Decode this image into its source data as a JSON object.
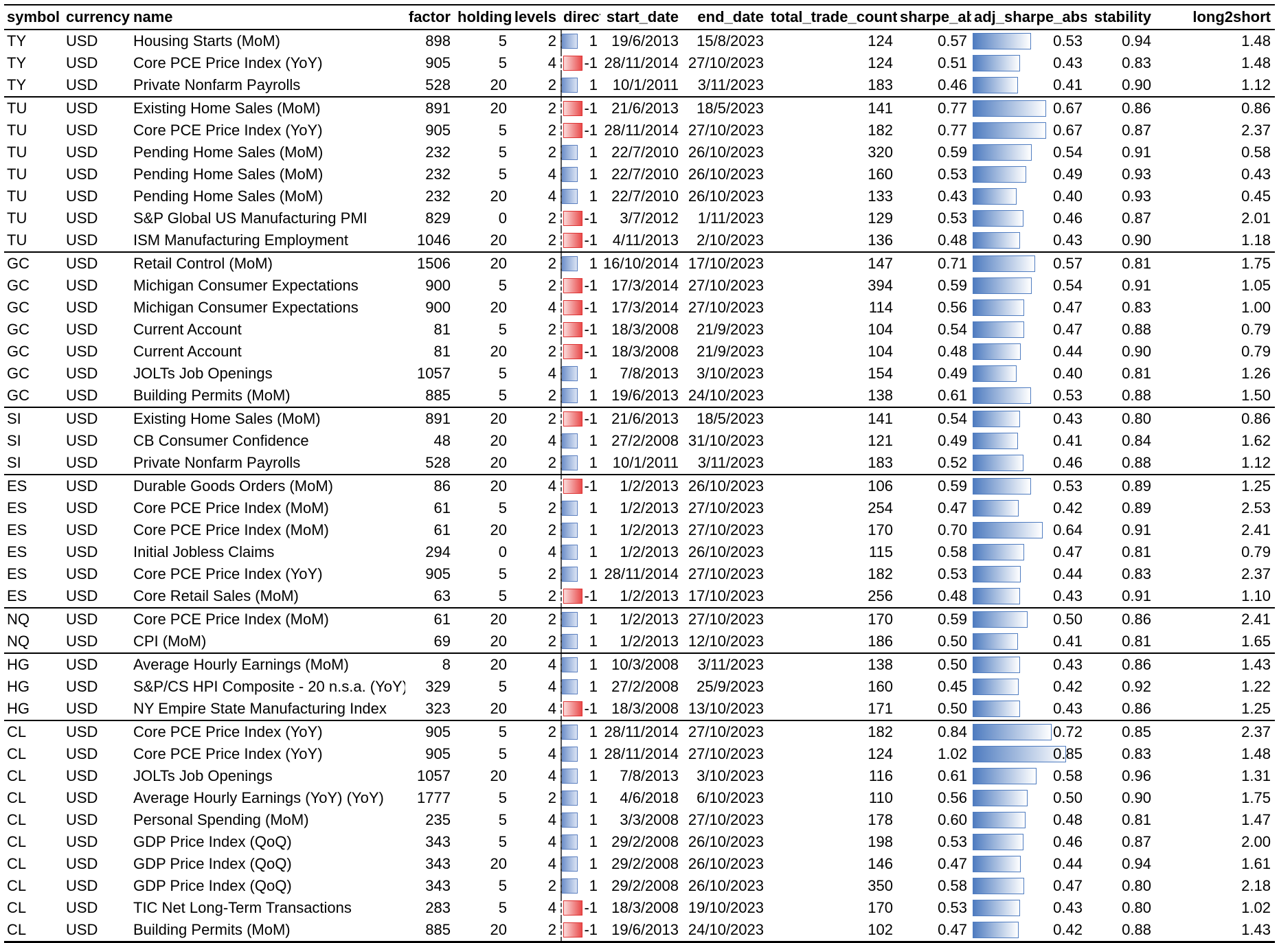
{
  "headers": [
    "symbol",
    "currency",
    "name",
    "factor",
    "holding",
    "levels",
    "direct",
    "start_date",
    "end_date",
    "total_trade_count",
    "sharpe_abs",
    "adj_sharpe_abs",
    "stability",
    "long2short"
  ],
  "rows": [
    {
      "symbol": "TY",
      "currency": "USD",
      "name": "Housing Starts (MoM)",
      "factor": "898",
      "holding": "5",
      "levels": "2",
      "direct": "1",
      "start_date": "19/6/2013",
      "end_date": "15/8/2023",
      "total_trade_count": "124",
      "sharpe_abs": "0.57",
      "adj_sharpe_abs": "0.53",
      "stability": "0.94",
      "long2short": "1.48"
    },
    {
      "symbol": "TY",
      "currency": "USD",
      "name": "Core PCE Price Index (YoY)",
      "factor": "905",
      "holding": "5",
      "levels": "4",
      "direct": "-1",
      "start_date": "28/11/2014",
      "end_date": "27/10/2023",
      "total_trade_count": "124",
      "sharpe_abs": "0.51",
      "adj_sharpe_abs": "0.43",
      "stability": "0.83",
      "long2short": "1.48"
    },
    {
      "symbol": "TY",
      "currency": "USD",
      "name": "Private Nonfarm Payrolls",
      "factor": "528",
      "holding": "20",
      "levels": "2",
      "direct": "1",
      "start_date": "10/1/2011",
      "end_date": "3/11/2023",
      "total_trade_count": "183",
      "sharpe_abs": "0.46",
      "adj_sharpe_abs": "0.41",
      "stability": "0.90",
      "long2short": "1.12"
    },
    {
      "symbol": "TU",
      "currency": "USD",
      "name": "Existing Home Sales (MoM)",
      "factor": "891",
      "holding": "20",
      "levels": "2",
      "direct": "-1",
      "start_date": "21/6/2013",
      "end_date": "18/5/2023",
      "total_trade_count": "141",
      "sharpe_abs": "0.77",
      "adj_sharpe_abs": "0.67",
      "stability": "0.86",
      "long2short": "0.86"
    },
    {
      "symbol": "TU",
      "currency": "USD",
      "name": "Core PCE Price Index (YoY)",
      "factor": "905",
      "holding": "5",
      "levels": "2",
      "direct": "-1",
      "start_date": "28/11/2014",
      "end_date": "27/10/2023",
      "total_trade_count": "182",
      "sharpe_abs": "0.77",
      "adj_sharpe_abs": "0.67",
      "stability": "0.87",
      "long2short": "2.37"
    },
    {
      "symbol": "TU",
      "currency": "USD",
      "name": "Pending Home Sales (MoM)",
      "factor": "232",
      "holding": "5",
      "levels": "2",
      "direct": "1",
      "start_date": "22/7/2010",
      "end_date": "26/10/2023",
      "total_trade_count": "320",
      "sharpe_abs": "0.59",
      "adj_sharpe_abs": "0.54",
      "stability": "0.91",
      "long2short": "0.58"
    },
    {
      "symbol": "TU",
      "currency": "USD",
      "name": "Pending Home Sales (MoM)",
      "factor": "232",
      "holding": "5",
      "levels": "4",
      "direct": "1",
      "start_date": "22/7/2010",
      "end_date": "26/10/2023",
      "total_trade_count": "160",
      "sharpe_abs": "0.53",
      "adj_sharpe_abs": "0.49",
      "stability": "0.93",
      "long2short": "0.43"
    },
    {
      "symbol": "TU",
      "currency": "USD",
      "name": "Pending Home Sales (MoM)",
      "factor": "232",
      "holding": "20",
      "levels": "4",
      "direct": "1",
      "start_date": "22/7/2010",
      "end_date": "26/10/2023",
      "total_trade_count": "133",
      "sharpe_abs": "0.43",
      "adj_sharpe_abs": "0.40",
      "stability": "0.93",
      "long2short": "0.45"
    },
    {
      "symbol": "TU",
      "currency": "USD",
      "name": "S&P Global US Manufacturing PMI",
      "factor": "829",
      "holding": "0",
      "levels": "2",
      "direct": "-1",
      "start_date": "3/7/2012",
      "end_date": "1/11/2023",
      "total_trade_count": "129",
      "sharpe_abs": "0.53",
      "adj_sharpe_abs": "0.46",
      "stability": "0.87",
      "long2short": "2.01"
    },
    {
      "symbol": "TU",
      "currency": "USD",
      "name": "ISM Manufacturing Employment",
      "factor": "1046",
      "holding": "20",
      "levels": "2",
      "direct": "-1",
      "start_date": "4/11/2013",
      "end_date": "2/10/2023",
      "total_trade_count": "136",
      "sharpe_abs": "0.48",
      "adj_sharpe_abs": "0.43",
      "stability": "0.90",
      "long2short": "1.18"
    },
    {
      "symbol": "GC",
      "currency": "USD",
      "name": "Retail Control (MoM)",
      "factor": "1506",
      "holding": "20",
      "levels": "2",
      "direct": "1",
      "start_date": "16/10/2014",
      "end_date": "17/10/2023",
      "total_trade_count": "147",
      "sharpe_abs": "0.71",
      "adj_sharpe_abs": "0.57",
      "stability": "0.81",
      "long2short": "1.75"
    },
    {
      "symbol": "GC",
      "currency": "USD",
      "name": "Michigan Consumer Expectations",
      "factor": "900",
      "holding": "5",
      "levels": "2",
      "direct": "-1",
      "start_date": "17/3/2014",
      "end_date": "27/10/2023",
      "total_trade_count": "394",
      "sharpe_abs": "0.59",
      "adj_sharpe_abs": "0.54",
      "stability": "0.91",
      "long2short": "1.05"
    },
    {
      "symbol": "GC",
      "currency": "USD",
      "name": "Michigan Consumer Expectations",
      "factor": "900",
      "holding": "20",
      "levels": "4",
      "direct": "-1",
      "start_date": "17/3/2014",
      "end_date": "27/10/2023",
      "total_trade_count": "114",
      "sharpe_abs": "0.56",
      "adj_sharpe_abs": "0.47",
      "stability": "0.83",
      "long2short": "1.00"
    },
    {
      "symbol": "GC",
      "currency": "USD",
      "name": "Current Account",
      "factor": "81",
      "holding": "5",
      "levels": "2",
      "direct": "-1",
      "start_date": "18/3/2008",
      "end_date": "21/9/2023",
      "total_trade_count": "104",
      "sharpe_abs": "0.54",
      "adj_sharpe_abs": "0.47",
      "stability": "0.88",
      "long2short": "0.79"
    },
    {
      "symbol": "GC",
      "currency": "USD",
      "name": "Current Account",
      "factor": "81",
      "holding": "20",
      "levels": "2",
      "direct": "-1",
      "start_date": "18/3/2008",
      "end_date": "21/9/2023",
      "total_trade_count": "104",
      "sharpe_abs": "0.48",
      "adj_sharpe_abs": "0.44",
      "stability": "0.90",
      "long2short": "0.79"
    },
    {
      "symbol": "GC",
      "currency": "USD",
      "name": "JOLTs Job Openings",
      "factor": "1057",
      "holding": "5",
      "levels": "4",
      "direct": "1",
      "start_date": "7/8/2013",
      "end_date": "3/10/2023",
      "total_trade_count": "154",
      "sharpe_abs": "0.49",
      "adj_sharpe_abs": "0.40",
      "stability": "0.81",
      "long2short": "1.26"
    },
    {
      "symbol": "GC",
      "currency": "USD",
      "name": "Building Permits (MoM)",
      "factor": "885",
      "holding": "5",
      "levels": "2",
      "direct": "1",
      "start_date": "19/6/2013",
      "end_date": "24/10/2023",
      "total_trade_count": "138",
      "sharpe_abs": "0.61",
      "adj_sharpe_abs": "0.53",
      "stability": "0.88",
      "long2short": "1.50"
    },
    {
      "symbol": "SI",
      "currency": "USD",
      "name": "Existing Home Sales (MoM)",
      "factor": "891",
      "holding": "20",
      "levels": "2",
      "direct": "-1",
      "start_date": "21/6/2013",
      "end_date": "18/5/2023",
      "total_trade_count": "141",
      "sharpe_abs": "0.54",
      "adj_sharpe_abs": "0.43",
      "stability": "0.80",
      "long2short": "0.86"
    },
    {
      "symbol": "SI",
      "currency": "USD",
      "name": "CB Consumer Confidence",
      "factor": "48",
      "holding": "20",
      "levels": "4",
      "direct": "1",
      "start_date": "27/2/2008",
      "end_date": "31/10/2023",
      "total_trade_count": "121",
      "sharpe_abs": "0.49",
      "adj_sharpe_abs": "0.41",
      "stability": "0.84",
      "long2short": "1.62"
    },
    {
      "symbol": "SI",
      "currency": "USD",
      "name": "Private Nonfarm Payrolls",
      "factor": "528",
      "holding": "20",
      "levels": "2",
      "direct": "1",
      "start_date": "10/1/2011",
      "end_date": "3/11/2023",
      "total_trade_count": "183",
      "sharpe_abs": "0.52",
      "adj_sharpe_abs": "0.46",
      "stability": "0.88",
      "long2short": "1.12"
    },
    {
      "symbol": "ES",
      "currency": "USD",
      "name": "Durable Goods Orders (MoM)",
      "factor": "86",
      "holding": "20",
      "levels": "4",
      "direct": "-1",
      "start_date": "1/2/2013",
      "end_date": "26/10/2023",
      "total_trade_count": "106",
      "sharpe_abs": "0.59",
      "adj_sharpe_abs": "0.53",
      "stability": "0.89",
      "long2short": "1.25"
    },
    {
      "symbol": "ES",
      "currency": "USD",
      "name": "Core PCE Price Index (MoM)",
      "factor": "61",
      "holding": "5",
      "levels": "2",
      "direct": "1",
      "start_date": "1/2/2013",
      "end_date": "27/10/2023",
      "total_trade_count": "254",
      "sharpe_abs": "0.47",
      "adj_sharpe_abs": "0.42",
      "stability": "0.89",
      "long2short": "2.53"
    },
    {
      "symbol": "ES",
      "currency": "USD",
      "name": "Core PCE Price Index (MoM)",
      "factor": "61",
      "holding": "20",
      "levels": "2",
      "direct": "1",
      "start_date": "1/2/2013",
      "end_date": "27/10/2023",
      "total_trade_count": "170",
      "sharpe_abs": "0.70",
      "adj_sharpe_abs": "0.64",
      "stability": "0.91",
      "long2short": "2.41"
    },
    {
      "symbol": "ES",
      "currency": "USD",
      "name": "Initial Jobless Claims",
      "factor": "294",
      "holding": "0",
      "levels": "4",
      "direct": "1",
      "start_date": "1/2/2013",
      "end_date": "26/10/2023",
      "total_trade_count": "115",
      "sharpe_abs": "0.58",
      "adj_sharpe_abs": "0.47",
      "stability": "0.81",
      "long2short": "0.79"
    },
    {
      "symbol": "ES",
      "currency": "USD",
      "name": "Core PCE Price Index (YoY)",
      "factor": "905",
      "holding": "5",
      "levels": "2",
      "direct": "1",
      "start_date": "28/11/2014",
      "end_date": "27/10/2023",
      "total_trade_count": "182",
      "sharpe_abs": "0.53",
      "adj_sharpe_abs": "0.44",
      "stability": "0.83",
      "long2short": "2.37"
    },
    {
      "symbol": "ES",
      "currency": "USD",
      "name": "Core Retail Sales (MoM)",
      "factor": "63",
      "holding": "5",
      "levels": "2",
      "direct": "-1",
      "start_date": "1/2/2013",
      "end_date": "17/10/2023",
      "total_trade_count": "256",
      "sharpe_abs": "0.48",
      "adj_sharpe_abs": "0.43",
      "stability": "0.91",
      "long2short": "1.10"
    },
    {
      "symbol": "NQ",
      "currency": "USD",
      "name": "Core PCE Price Index (MoM)",
      "factor": "61",
      "holding": "20",
      "levels": "2",
      "direct": "1",
      "start_date": "1/2/2013",
      "end_date": "27/10/2023",
      "total_trade_count": "170",
      "sharpe_abs": "0.59",
      "adj_sharpe_abs": "0.50",
      "stability": "0.86",
      "long2short": "2.41"
    },
    {
      "symbol": "NQ",
      "currency": "USD",
      "name": "CPI (MoM)",
      "factor": "69",
      "holding": "20",
      "levels": "2",
      "direct": "1",
      "start_date": "1/2/2013",
      "end_date": "12/10/2023",
      "total_trade_count": "186",
      "sharpe_abs": "0.50",
      "adj_sharpe_abs": "0.41",
      "stability": "0.81",
      "long2short": "1.65"
    },
    {
      "symbol": "HG",
      "currency": "USD",
      "name": "Average Hourly Earnings (MoM)",
      "factor": "8",
      "holding": "20",
      "levels": "4",
      "direct": "1",
      "start_date": "10/3/2008",
      "end_date": "3/11/2023",
      "total_trade_count": "138",
      "sharpe_abs": "0.50",
      "adj_sharpe_abs": "0.43",
      "stability": "0.86",
      "long2short": "1.43"
    },
    {
      "symbol": "HG",
      "currency": "USD",
      "name": "S&P/CS HPI Composite - 20 n.s.a. (YoY)",
      "factor": "329",
      "holding": "5",
      "levels": "4",
      "direct": "1",
      "start_date": "27/2/2008",
      "end_date": "25/9/2023",
      "total_trade_count": "160",
      "sharpe_abs": "0.45",
      "adj_sharpe_abs": "0.42",
      "stability": "0.92",
      "long2short": "1.22"
    },
    {
      "symbol": "HG",
      "currency": "USD",
      "name": "NY Empire State Manufacturing Index",
      "factor": "323",
      "holding": "20",
      "levels": "4",
      "direct": "-1",
      "start_date": "18/3/2008",
      "end_date": "13/10/2023",
      "total_trade_count": "171",
      "sharpe_abs": "0.50",
      "adj_sharpe_abs": "0.43",
      "stability": "0.86",
      "long2short": "1.25"
    },
    {
      "symbol": "CL",
      "currency": "USD",
      "name": "Core PCE Price Index (YoY)",
      "factor": "905",
      "holding": "5",
      "levels": "2",
      "direct": "1",
      "start_date": "28/11/2014",
      "end_date": "27/10/2023",
      "total_trade_count": "182",
      "sharpe_abs": "0.84",
      "adj_sharpe_abs": "0.72",
      "stability": "0.85",
      "long2short": "2.37"
    },
    {
      "symbol": "CL",
      "currency": "USD",
      "name": "Core PCE Price Index (YoY)",
      "factor": "905",
      "holding": "5",
      "levels": "4",
      "direct": "1",
      "start_date": "28/11/2014",
      "end_date": "27/10/2023",
      "total_trade_count": "124",
      "sharpe_abs": "1.02",
      "adj_sharpe_abs": "0.85",
      "stability": "0.83",
      "long2short": "1.48"
    },
    {
      "symbol": "CL",
      "currency": "USD",
      "name": "JOLTs Job Openings",
      "factor": "1057",
      "holding": "20",
      "levels": "4",
      "direct": "1",
      "start_date": "7/8/2013",
      "end_date": "3/10/2023",
      "total_trade_count": "116",
      "sharpe_abs": "0.61",
      "adj_sharpe_abs": "0.58",
      "stability": "0.96",
      "long2short": "1.31"
    },
    {
      "symbol": "CL",
      "currency": "USD",
      "name": "Average Hourly Earnings (YoY) (YoY)",
      "factor": "1777",
      "holding": "5",
      "levels": "2",
      "direct": "1",
      "start_date": "4/6/2018",
      "end_date": "6/10/2023",
      "total_trade_count": "110",
      "sharpe_abs": "0.56",
      "adj_sharpe_abs": "0.50",
      "stability": "0.90",
      "long2short": "1.75"
    },
    {
      "symbol": "CL",
      "currency": "USD",
      "name": "Personal Spending (MoM)",
      "factor": "235",
      "holding": "5",
      "levels": "4",
      "direct": "1",
      "start_date": "3/3/2008",
      "end_date": "27/10/2023",
      "total_trade_count": "178",
      "sharpe_abs": "0.60",
      "adj_sharpe_abs": "0.48",
      "stability": "0.81",
      "long2short": "1.47"
    },
    {
      "symbol": "CL",
      "currency": "USD",
      "name": "GDP Price Index (QoQ)",
      "factor": "343",
      "holding": "5",
      "levels": "4",
      "direct": "1",
      "start_date": "29/2/2008",
      "end_date": "26/10/2023",
      "total_trade_count": "198",
      "sharpe_abs": "0.53",
      "adj_sharpe_abs": "0.46",
      "stability": "0.87",
      "long2short": "2.00"
    },
    {
      "symbol": "CL",
      "currency": "USD",
      "name": "GDP Price Index (QoQ)",
      "factor": "343",
      "holding": "20",
      "levels": "4",
      "direct": "1",
      "start_date": "29/2/2008",
      "end_date": "26/10/2023",
      "total_trade_count": "146",
      "sharpe_abs": "0.47",
      "adj_sharpe_abs": "0.44",
      "stability": "0.94",
      "long2short": "1.61"
    },
    {
      "symbol": "CL",
      "currency": "USD",
      "name": "GDP Price Index (QoQ)",
      "factor": "343",
      "holding": "5",
      "levels": "2",
      "direct": "1",
      "start_date": "29/2/2008",
      "end_date": "26/10/2023",
      "total_trade_count": "350",
      "sharpe_abs": "0.58",
      "adj_sharpe_abs": "0.47",
      "stability": "0.80",
      "long2short": "2.18"
    },
    {
      "symbol": "CL",
      "currency": "USD",
      "name": "TIC Net Long-Term Transactions",
      "factor": "283",
      "holding": "5",
      "levels": "4",
      "direct": "-1",
      "start_date": "18/3/2008",
      "end_date": "19/10/2023",
      "total_trade_count": "170",
      "sharpe_abs": "0.53",
      "adj_sharpe_abs": "0.43",
      "stability": "0.80",
      "long2short": "1.02"
    },
    {
      "symbol": "CL",
      "currency": "USD",
      "name": "Building Permits (MoM)",
      "factor": "885",
      "holding": "20",
      "levels": "2",
      "direct": "-1",
      "start_date": "19/6/2013",
      "end_date": "24/10/2023",
      "total_trade_count": "102",
      "sharpe_abs": "0.47",
      "adj_sharpe_abs": "0.42",
      "stability": "0.88",
      "long2short": "1.43"
    }
  ],
  "colors": {
    "positive_bar": "#6d8fc9",
    "negative_bar": "#e84a4a",
    "data_bar": "#4f7cc0"
  }
}
